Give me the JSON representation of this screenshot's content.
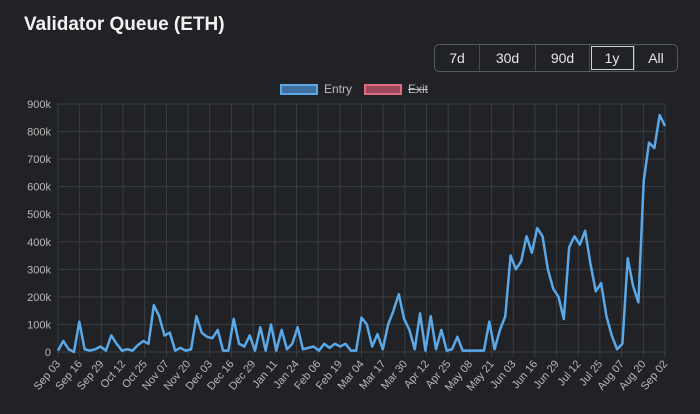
{
  "title": "Validator Queue (ETH)",
  "range_buttons": [
    {
      "label": "7d",
      "active": false
    },
    {
      "label": "30d",
      "active": false
    },
    {
      "label": "90d",
      "active": false
    },
    {
      "label": "1y",
      "active": true
    },
    {
      "label": "All",
      "active": false
    }
  ],
  "chart_data": {
    "type": "line",
    "title": "",
    "xlabel": "",
    "ylabel": "",
    "ylim": [
      0,
      900000
    ],
    "y_ticks": [
      "0",
      "100k",
      "200k",
      "300k",
      "400k",
      "500k",
      "600k",
      "700k",
      "800k",
      "900k"
    ],
    "x_tick_labels": [
      "Sep 03",
      "Sep 16",
      "Sep 29",
      "Oct 12",
      "Oct 25",
      "Nov 07",
      "Nov 20",
      "Dec 03",
      "Dec 16",
      "Dec 29",
      "Jan 11",
      "Jan 24",
      "Feb 06",
      "Feb 19",
      "Mar 04",
      "Mar 17",
      "Mar 30",
      "Apr 12",
      "Apr 25",
      "May 08",
      "May 21",
      "Jun 03",
      "Jun 16",
      "Jun 29",
      "Jul 12",
      "Jul 25",
      "Aug 07",
      "Aug 20",
      "Sep 02"
    ],
    "grid": true,
    "legend_position": "top",
    "series": [
      {
        "name": "Entry",
        "color": "#5aa8e8",
        "visible": true,
        "values": [
          5000,
          40000,
          10000,
          0,
          110000,
          10000,
          5000,
          10000,
          20000,
          5000,
          60000,
          30000,
          5000,
          10000,
          5000,
          25000,
          40000,
          30000,
          170000,
          130000,
          60000,
          70000,
          5000,
          15000,
          5000,
          10000,
          130000,
          70000,
          55000,
          50000,
          80000,
          5000,
          5000,
          120000,
          30000,
          20000,
          60000,
          5000,
          90000,
          5000,
          100000,
          5000,
          80000,
          10000,
          30000,
          90000,
          10000,
          15000,
          20000,
          5000,
          30000,
          15000,
          30000,
          20000,
          30000,
          5000,
          5000,
          125000,
          100000,
          20000,
          65000,
          10000,
          100000,
          150000,
          210000,
          120000,
          80000,
          10000,
          140000,
          5000,
          130000,
          10000,
          80000,
          5000,
          10000,
          55000,
          5000,
          5000,
          5000,
          5000,
          5000,
          110000,
          10000,
          80000,
          130000,
          350000,
          300000,
          330000,
          420000,
          360000,
          450000,
          420000,
          300000,
          230000,
          200000,
          120000,
          380000,
          420000,
          390000,
          440000,
          320000,
          220000,
          250000,
          130000,
          60000,
          10000,
          30000,
          340000,
          240000,
          180000,
          620000,
          760000,
          740000,
          860000,
          820000
        ]
      },
      {
        "name": "Exit",
        "color": "#e06c82",
        "visible": false,
        "values": []
      }
    ]
  }
}
